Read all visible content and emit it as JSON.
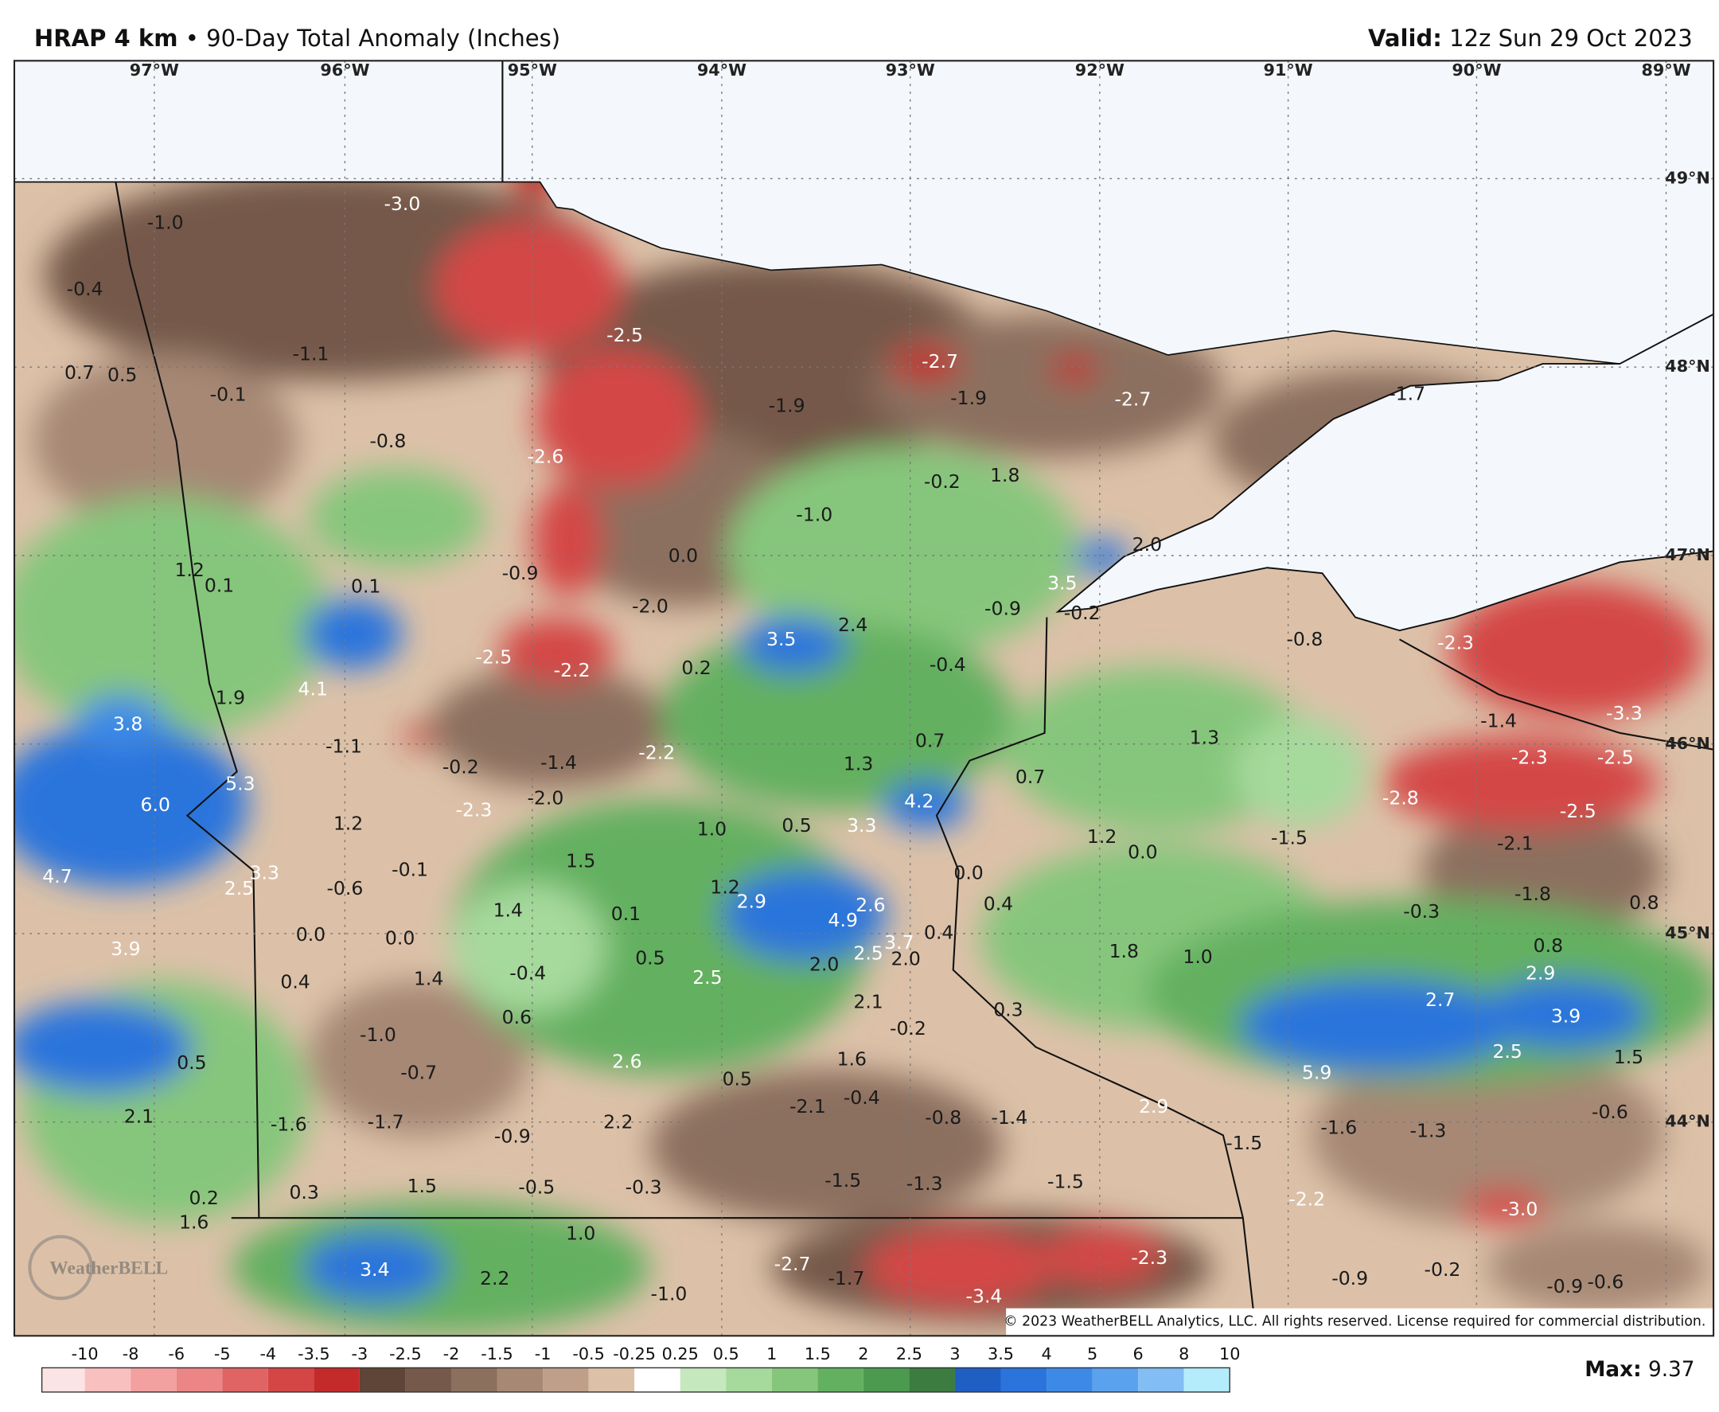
{
  "header": {
    "model": "HRAP 4 km",
    "separator": "•",
    "product": "90-Day Total Anomaly (Inches)",
    "valid_label": "Valid:",
    "valid": "12z Sun 29 Oct 2023"
  },
  "map": {
    "lon_labels": [
      "97°W",
      "96°W",
      "95°W",
      "94°W",
      "93°W",
      "92°W",
      "91°W",
      "90°W",
      "89°W"
    ],
    "lat_labels": [
      "49°N",
      "48°N",
      "47°N",
      "46°N",
      "45°N",
      "44°N"
    ],
    "point_labels": [
      "-3.0",
      "-1.0",
      "-0.4",
      "-1.1",
      "0.7",
      "0.5",
      "-0.1",
      "-2.5",
      "-2.7",
      "-1.9",
      "-1.9",
      "-2.7",
      "-1.7",
      "-0.8",
      "-2.6",
      "-0.2",
      "1.8",
      "-1.0",
      "2.0",
      "0.0",
      "-0.9",
      "1.2",
      "0.1",
      "0.1",
      "3.5",
      "-2.0",
      "-0.9",
      "-0.2",
      "3.5",
      "2.4",
      "-0.8",
      "-2.3",
      "-2.5",
      "-2.2",
      "0.2",
      "-0.4",
      "4.1",
      "1.9",
      "3.8",
      "-1.4",
      "-3.3",
      "-1.1",
      "0.7",
      "1.3",
      "-0.2",
      "-1.4",
      "-2.2",
      "1.3",
      "-2.3",
      "-2.5",
      "5.3",
      "6.0",
      "-2.3",
      "-2.0",
      "0.7",
      "4.2",
      "-2.8",
      "-2.5",
      "1.2",
      "1.0",
      "0.5",
      "3.3",
      "1.2",
      "0.0",
      "-1.5",
      "-2.1",
      "4.7",
      "3.3",
      "2.5",
      "-0.6",
      "-0.1",
      "1.5",
      "0.0",
      "-1.8",
      "0.8",
      "1.4",
      "0.1",
      "1.2",
      "2.9",
      "4.9",
      "2.6",
      "0.4",
      "-0.3",
      "3.9",
      "0.0",
      "0.0",
      "3.7",
      "0.4",
      "0.8",
      "0.5",
      "2.5",
      "2.0",
      "2.5",
      "2.0",
      "1.8",
      "1.0",
      "2.9",
      "0.4",
      "1.4",
      "-0.4",
      "2.1",
      "0.3",
      "2.7",
      "3.9",
      "0.6",
      "-1.0",
      "-0.2",
      "-0.7",
      "0.5",
      "2.6",
      "1.6",
      "0.5",
      "5.9",
      "2.5",
      "1.5",
      "2.1",
      "-1.6",
      "-1.7",
      "-0.9",
      "2.2",
      "-2.1",
      "-0.4",
      "-0.8",
      "-1.4",
      "2.9",
      "-1.6",
      "-1.3",
      "-0.6",
      "-1.5",
      "0.2",
      "1.6",
      "0.3",
      "1.5",
      "-0.5",
      "-0.3",
      "-1.5",
      "-1.3",
      "-1.5",
      "-2.2",
      "-3.0",
      "1.0",
      "3.4",
      "2.2",
      "-2.7",
      "-1.7",
      "-3.4",
      "-2.3",
      "-0.9",
      "-0.2",
      "-0.9",
      "-0.6",
      "-1.0"
    ],
    "copyright": "© 2023 WeatherBELL Analytics, LLC. All rights reserved. License required for commercial distribution.",
    "logo": "WeatherBELL"
  },
  "legend": {
    "tick_labels": [
      "-10",
      "-8",
      "-6",
      "-5",
      "-4",
      "-3.5",
      "-3",
      "-2.5",
      "-2",
      "-1.5",
      "-1",
      "-0.5",
      "-0.25",
      "0.25",
      "0.5",
      "1",
      "1.5",
      "2",
      "2.5",
      "3",
      "3.5",
      "4",
      "5",
      "6",
      "8",
      "10"
    ],
    "colors": [
      "#fde4e4",
      "#f9c0c0",
      "#f3a0a0",
      "#ec8585",
      "#e06464",
      "#d44646",
      "#c42a2a",
      "#5e4538",
      "#75594a",
      "#8c705e",
      "#a68874",
      "#bf9f89",
      "#dcc1a8",
      "#ffffff",
      "#c6e8bf",
      "#a6d99c",
      "#86c67c",
      "#64b061",
      "#4c9a4f",
      "#3c7c40",
      "#1f5fc4",
      "#2a74dc",
      "#3d8ae6",
      "#5aa2ee",
      "#82bdf4",
      "#b4ecfb"
    ]
  },
  "max": {
    "label": "Max:",
    "value": "9.37"
  }
}
